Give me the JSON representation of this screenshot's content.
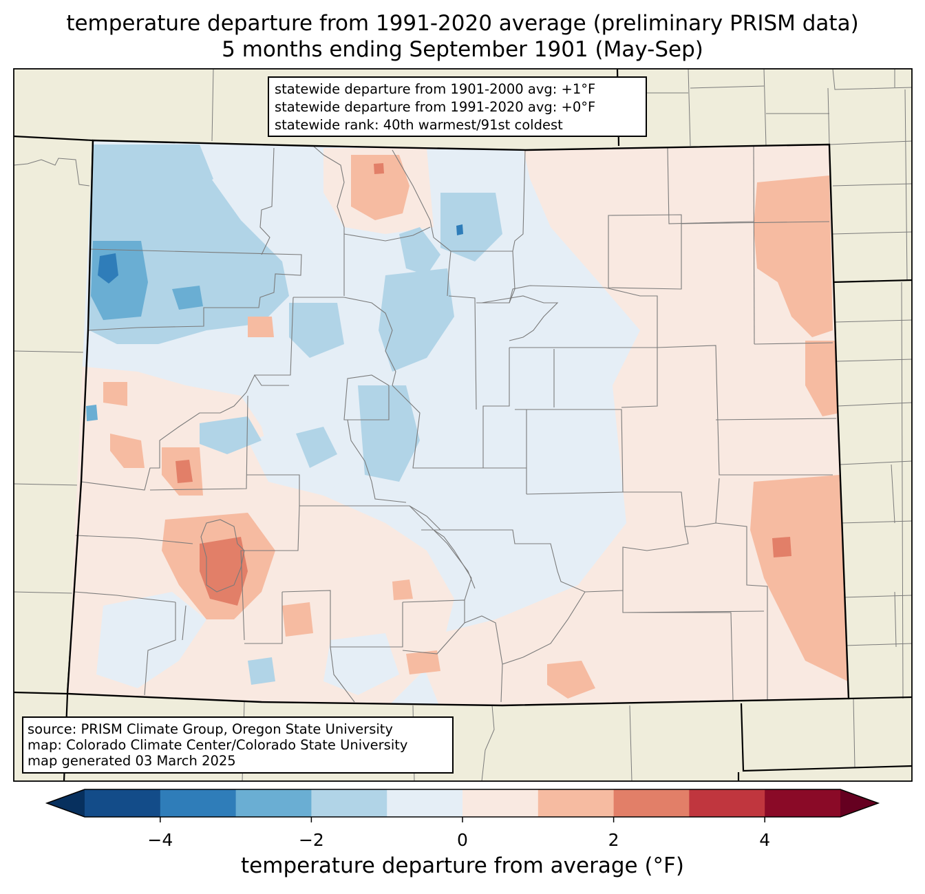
{
  "title": {
    "line1": "temperature departure from 1991-2020 average (preliminary PRISM data)",
    "line2": "5 months ending September 1901 (May-Sep)"
  },
  "stats_box": {
    "line1": "statewide departure from 1901-2000 avg: +1°F",
    "line2": "statewide departure from 1991-2020 avg: +0°F",
    "line3": "statewide rank: 40th warmest/91st coldest"
  },
  "source_box": {
    "line1": "source: PRISM Climate Group, Oregon State University",
    "line2": "map: Colorado Climate Center/Colorado State University",
    "line3": "map generated 03 March 2025"
  },
  "colorbar": {
    "label": "temperature departure from average (°F)",
    "ticks": [
      "−4",
      "−2",
      "0",
      "2",
      "4"
    ],
    "tick_values": [
      -4,
      -2,
      0,
      2,
      4
    ],
    "range": [
      -5,
      5
    ],
    "bins": [
      {
        "from": -5,
        "to": -4,
        "color": "#134c89"
      },
      {
        "from": -4,
        "to": -3,
        "color": "#2f7db9"
      },
      {
        "from": -3,
        "to": -2,
        "color": "#6aaed3"
      },
      {
        "from": -2,
        "to": -1,
        "color": "#b1d4e7"
      },
      {
        "from": -1,
        "to": 0,
        "color": "#e5eef6"
      },
      {
        "from": 0,
        "to": 1,
        "color": "#f9e9e1"
      },
      {
        "from": 1,
        "to": 2,
        "color": "#f6bba1"
      },
      {
        "from": 2,
        "to": 3,
        "color": "#e27f68"
      },
      {
        "from": 3,
        "to": 4,
        "color": "#c0363e"
      },
      {
        "from": 4,
        "to": 5,
        "color": "#8a0a27"
      }
    ],
    "under_color": "#07305e",
    "over_color": "#650020"
  },
  "colors": {
    "land": "#efeddb",
    "border": "#000000",
    "county_lines": "#7a7a7a"
  }
}
